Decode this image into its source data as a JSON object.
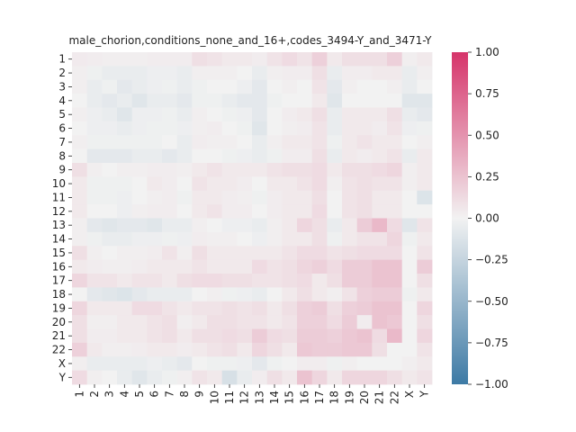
{
  "chart_data": {
    "type": "heatmap",
    "title": "male_chorion,conditions_none_and_16+,codes_3494-Y_and_3471-Y",
    "xlabel": "",
    "ylabel": "",
    "labels": [
      "1",
      "2",
      "3",
      "4",
      "5",
      "6",
      "7",
      "8",
      "9",
      "10",
      "11",
      "12",
      "13",
      "14",
      "15",
      "16",
      "17",
      "18",
      "19",
      "20",
      "21",
      "22",
      "X",
      "Y"
    ],
    "colorbar": {
      "vmin": -1.0,
      "vmax": 1.0,
      "ticks": [
        -1.0,
        -0.75,
        -0.5,
        -0.25,
        0.0,
        0.25,
        0.5,
        0.75,
        1.0
      ],
      "tick_labels": [
        "−1.00",
        "−0.75",
        "−0.50",
        "−0.25",
        "0.00",
        "0.25",
        "0.50",
        "0.75",
        "1.00"
      ],
      "low_color": "#3d7aa5",
      "mid_color": "#f2f2f2",
      "high_color": "#d6346a"
    },
    "values": [
      [
        0.04,
        0.03,
        0.02,
        0.02,
        0.02,
        0.03,
        0.03,
        0.03,
        0.1,
        0.08,
        0.05,
        0.05,
        0.03,
        0.08,
        0.12,
        0.08,
        0.18,
        0.05,
        0.1,
        0.1,
        0.1,
        0.18,
        0.02,
        0.05
      ],
      [
        0.02,
        -0.02,
        -0.05,
        -0.05,
        -0.05,
        -0.03,
        -0.03,
        -0.05,
        0.02,
        0.02,
        0.02,
        0.0,
        -0.05,
        0.02,
        0.03,
        0.03,
        0.1,
        -0.05,
        0.03,
        0.03,
        0.05,
        0.05,
        -0.05,
        0.02
      ],
      [
        0.02,
        -0.05,
        -0.02,
        -0.08,
        -0.05,
        -0.03,
        -0.02,
        -0.05,
        -0.02,
        0.0,
        0.0,
        -0.03,
        -0.08,
        0.0,
        0.02,
        0.0,
        0.08,
        -0.08,
        0.02,
        0.0,
        0.0,
        0.02,
        -0.05,
        0.0
      ],
      [
        0.0,
        -0.05,
        -0.08,
        -0.05,
        -0.1,
        -0.05,
        -0.05,
        -0.08,
        -0.02,
        -0.02,
        -0.05,
        -0.08,
        -0.08,
        -0.02,
        0.0,
        0.0,
        0.05,
        -0.1,
        0.0,
        0.0,
        0.0,
        0.0,
        -0.1,
        -0.1
      ],
      [
        0.02,
        -0.03,
        -0.05,
        -0.1,
        -0.03,
        -0.03,
        -0.02,
        -0.05,
        0.02,
        0.0,
        -0.02,
        -0.03,
        -0.08,
        0.0,
        0.03,
        0.05,
        0.1,
        -0.05,
        0.05,
        0.05,
        0.05,
        0.1,
        -0.05,
        -0.08
      ],
      [
        0.0,
        -0.03,
        -0.03,
        -0.05,
        -0.03,
        -0.02,
        -0.02,
        -0.03,
        0.02,
        0.03,
        0.0,
        -0.02,
        -0.1,
        0.0,
        0.02,
        0.03,
        0.08,
        -0.05,
        0.05,
        0.05,
        0.03,
        0.08,
        -0.03,
        -0.02
      ],
      [
        0.02,
        -0.02,
        -0.02,
        -0.02,
        -0.02,
        -0.02,
        0.0,
        -0.05,
        0.03,
        0.02,
        0.02,
        0.0,
        -0.05,
        0.02,
        0.05,
        0.05,
        0.08,
        -0.02,
        0.05,
        0.08,
        0.05,
        0.05,
        0.0,
        0.02
      ],
      [
        0.0,
        -0.08,
        -0.08,
        -0.08,
        -0.05,
        -0.05,
        -0.08,
        -0.05,
        0.0,
        0.0,
        -0.02,
        -0.03,
        -0.05,
        -0.02,
        0.03,
        0.03,
        0.1,
        -0.05,
        0.05,
        0.03,
        0.05,
        0.08,
        -0.05,
        0.05
      ],
      [
        0.1,
        0.02,
        0.0,
        0.02,
        0.02,
        0.03,
        0.03,
        0.02,
        0.05,
        0.08,
        0.05,
        0.05,
        0.05,
        0.08,
        0.1,
        0.1,
        0.12,
        0.05,
        0.1,
        0.1,
        0.12,
        0.15,
        0.02,
        0.05
      ],
      [
        0.05,
        -0.02,
        -0.02,
        -0.02,
        0.0,
        0.05,
        0.03,
        0.0,
        0.08,
        0.05,
        0.05,
        0.03,
        0.0,
        0.05,
        0.05,
        0.08,
        0.12,
        0.02,
        0.08,
        0.1,
        0.08,
        0.08,
        0.02,
        0.05
      ],
      [
        0.05,
        -0.02,
        -0.02,
        -0.03,
        0.0,
        0.02,
        0.03,
        -0.02,
        0.05,
        0.05,
        0.03,
        0.02,
        -0.02,
        0.03,
        0.05,
        0.05,
        0.1,
        0.0,
        0.08,
        0.1,
        0.05,
        0.05,
        0.0,
        -0.12
      ],
      [
        0.05,
        0.0,
        0.0,
        -0.03,
        0.02,
        0.03,
        0.03,
        0.0,
        0.05,
        0.08,
        0.03,
        0.03,
        0.0,
        0.03,
        0.05,
        0.05,
        0.12,
        0.0,
        0.08,
        0.1,
        0.05,
        0.05,
        0.0,
        0.0
      ],
      [
        0.02,
        -0.08,
        -0.1,
        -0.08,
        -0.08,
        -0.1,
        -0.05,
        -0.05,
        0.02,
        0.0,
        -0.03,
        -0.03,
        -0.05,
        0.02,
        0.05,
        0.15,
        0.1,
        -0.05,
        0.05,
        0.2,
        0.3,
        0.12,
        -0.1,
        0.08
      ],
      [
        0.02,
        -0.02,
        -0.05,
        -0.05,
        -0.03,
        -0.03,
        -0.02,
        -0.03,
        0.03,
        0.02,
        0.02,
        0.0,
        -0.03,
        0.02,
        0.05,
        0.05,
        0.1,
        -0.02,
        0.05,
        0.08,
        0.08,
        0.15,
        -0.02,
        0.05
      ],
      [
        0.1,
        0.02,
        0.0,
        0.02,
        0.02,
        0.03,
        0.08,
        0.02,
        0.1,
        0.05,
        0.05,
        0.05,
        0.05,
        0.05,
        0.08,
        0.12,
        0.12,
        0.08,
        0.1,
        0.12,
        0.12,
        0.12,
        0.0,
        0.08
      ],
      [
        0.05,
        0.03,
        0.02,
        0.02,
        0.03,
        0.05,
        0.05,
        0.05,
        0.08,
        0.05,
        0.05,
        0.05,
        0.12,
        0.08,
        0.1,
        0.15,
        0.18,
        0.12,
        0.2,
        0.2,
        0.25,
        0.25,
        0.0,
        0.2
      ],
      [
        0.15,
        0.08,
        0.08,
        0.05,
        0.08,
        0.08,
        0.05,
        0.1,
        0.12,
        0.12,
        0.1,
        0.1,
        0.08,
        0.08,
        0.1,
        0.12,
        0.05,
        0.1,
        0.2,
        0.2,
        0.25,
        0.25,
        0.0,
        0.1
      ],
      [
        0.0,
        -0.08,
        -0.1,
        -0.12,
        -0.08,
        -0.05,
        -0.05,
        -0.05,
        0.0,
        0.02,
        -0.02,
        -0.03,
        -0.05,
        0.0,
        0.05,
        0.1,
        0.05,
        0.02,
        0.08,
        0.18,
        0.2,
        0.2,
        -0.02,
        0.05
      ],
      [
        0.15,
        0.05,
        0.05,
        0.05,
        0.12,
        0.12,
        0.08,
        0.05,
        0.08,
        0.08,
        0.1,
        0.08,
        0.1,
        0.05,
        0.1,
        0.18,
        0.2,
        0.1,
        0.18,
        0.2,
        0.25,
        0.25,
        0.0,
        0.15
      ],
      [
        0.1,
        0.02,
        0.02,
        0.05,
        0.05,
        0.08,
        0.1,
        0.02,
        0.05,
        0.1,
        0.1,
        0.08,
        0.08,
        0.05,
        0.08,
        0.18,
        0.18,
        0.12,
        0.2,
        0.03,
        0.25,
        0.22,
        0.0,
        0.1
      ],
      [
        0.1,
        0.03,
        0.03,
        0.05,
        0.05,
        0.08,
        0.1,
        0.05,
        0.1,
        0.1,
        0.12,
        0.1,
        0.2,
        0.12,
        0.1,
        0.2,
        0.2,
        0.18,
        0.22,
        0.25,
        0.12,
        0.3,
        0.0,
        0.15
      ],
      [
        0.18,
        0.05,
        0.02,
        0.02,
        0.03,
        0.05,
        0.05,
        0.03,
        0.05,
        0.08,
        0.1,
        0.05,
        0.15,
        0.1,
        0.05,
        0.22,
        0.2,
        0.2,
        0.22,
        0.22,
        0.1,
        0.0,
        0.0,
        0.08
      ],
      [
        0.02,
        -0.05,
        -0.05,
        -0.05,
        -0.05,
        -0.03,
        -0.05,
        -0.08,
        0.0,
        -0.02,
        -0.02,
        -0.03,
        -0.08,
        -0.02,
        0.0,
        0.03,
        0.03,
        -0.02,
        0.02,
        0.0,
        0.0,
        0.0,
        0.02,
        0.05
      ],
      [
        0.12,
        0.02,
        0.0,
        -0.05,
        -0.1,
        -0.05,
        -0.02,
        0.02,
        0.08,
        0.05,
        -0.15,
        -0.05,
        0.03,
        0.1,
        0.05,
        0.25,
        0.15,
        0.05,
        0.15,
        0.15,
        0.15,
        0.1,
        0.05,
        0.08
      ]
    ]
  }
}
